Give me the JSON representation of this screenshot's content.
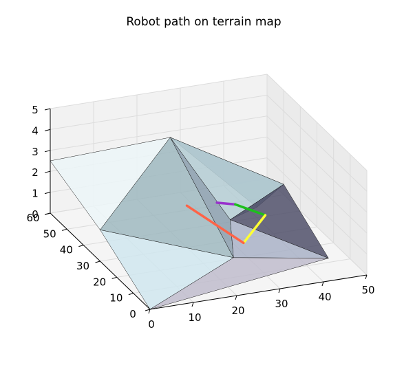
{
  "chart_data": {
    "type": "surface3d",
    "title": "Robot path on terrain map",
    "xlabel": "",
    "ylabel": "",
    "zlabel": "",
    "x_ticks": [
      "0",
      "10",
      "20",
      "30",
      "40",
      "50"
    ],
    "y_ticks": [
      "0",
      "10",
      "20",
      "30",
      "40",
      "50",
      "60"
    ],
    "z_ticks": [
      "0",
      "1",
      "2",
      "3",
      "4",
      "5"
    ],
    "xlim": [
      0,
      50
    ],
    "ylim": [
      0,
      60
    ],
    "zlim": [
      0,
      5
    ],
    "grid": true,
    "terrain_points": [
      {
        "x": 0,
        "y": 0,
        "z": 0
      },
      {
        "x": 0,
        "y": 30,
        "z": 1.5
      },
      {
        "x": 0,
        "y": 60,
        "z": 2.5
      },
      {
        "x": 25,
        "y": 15,
        "z": 0.5
      },
      {
        "x": 20,
        "y": 40,
        "z": 4.5
      },
      {
        "x": 30,
        "y": 30,
        "z": 1.0
      },
      {
        "x": 50,
        "y": 50,
        "z": 0.5
      },
      {
        "x": 45,
        "y": 10,
        "z": 0.2
      },
      {
        "x": 40,
        "y": 40,
        "z": 0.5
      }
    ],
    "terrain_faces": [
      [
        0,
        1,
        3
      ],
      [
        1,
        4,
        3
      ],
      [
        1,
        2,
        4
      ],
      [
        3,
        4,
        5
      ],
      [
        4,
        6,
        5
      ],
      [
        3,
        5,
        7
      ],
      [
        5,
        6,
        7
      ],
      [
        0,
        3,
        7
      ],
      [
        4,
        8,
        6
      ],
      [
        5,
        8,
        6
      ]
    ],
    "face_colors": [
      "#d0e6ef",
      "#9fb8c0",
      "#ecf6f8",
      "#8a9dad",
      "#b4cdd4",
      "#a9b1c7",
      "#50506a",
      "#c0bccc",
      "#90a6b2",
      "#7a8ea0"
    ],
    "path": [
      {
        "x": 30,
        "y": 38,
        "z": 1.2
      },
      {
        "x": 35,
        "y": 40,
        "z": 0.8
      },
      {
        "x": 40,
        "y": 35,
        "z": 0.5
      },
      {
        "x": 30,
        "y": 22,
        "z": 0.5
      },
      {
        "x": 20,
        "y": 30,
        "z": 2.0
      }
    ],
    "path_colors": [
      "#9932cc",
      "#1dbf1d",
      "#ffff33",
      "#ff6347"
    ]
  }
}
